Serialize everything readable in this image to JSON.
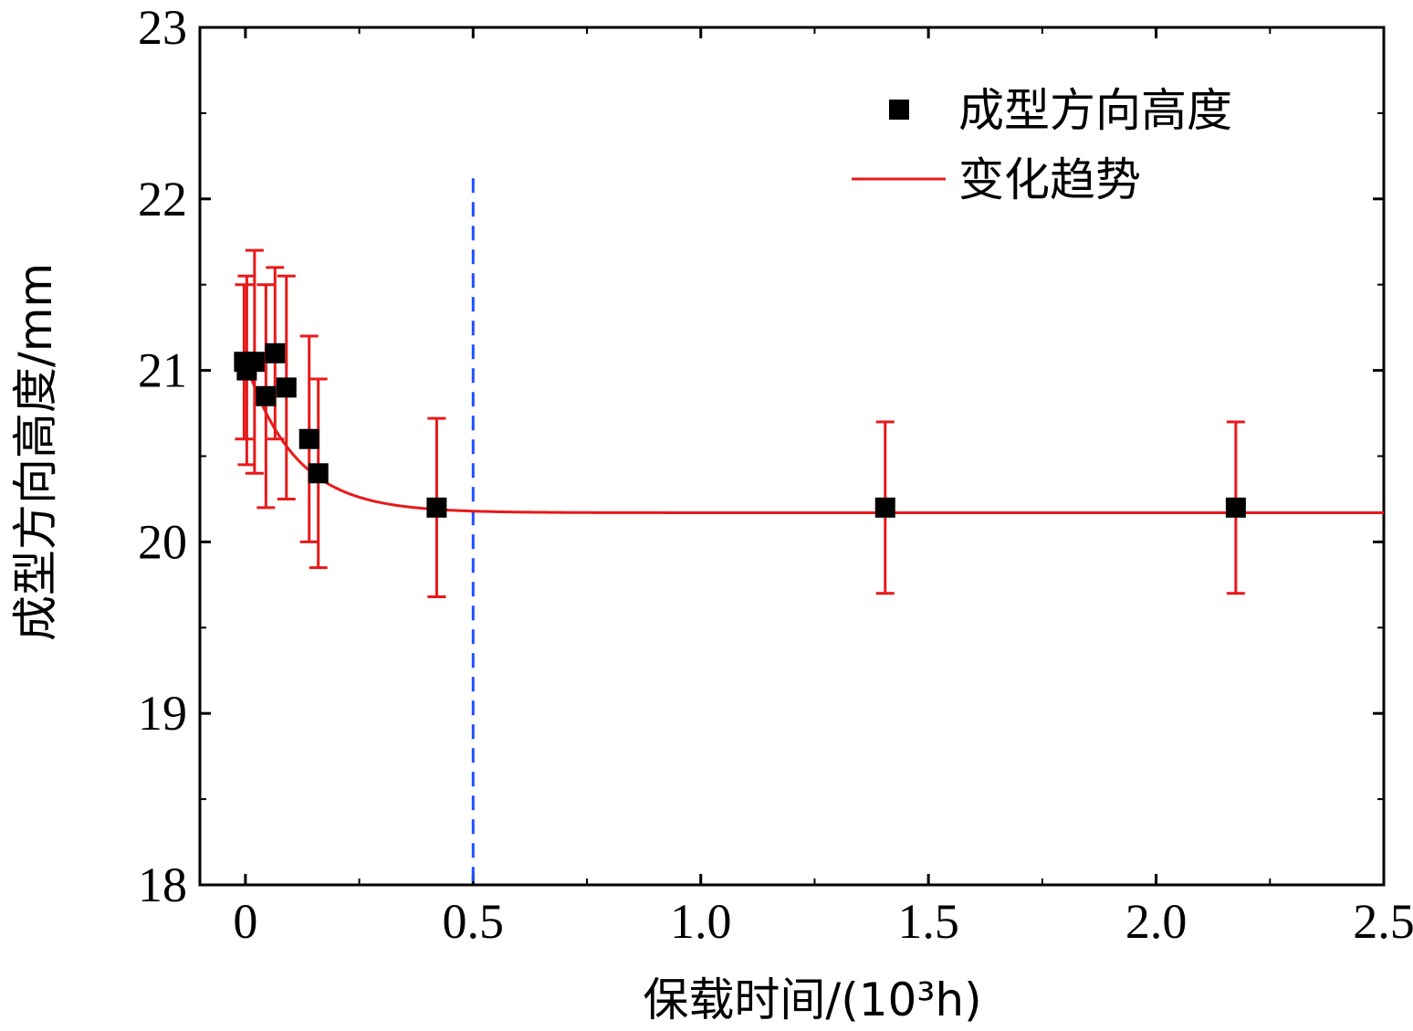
{
  "chart_data": {
    "type": "scatter",
    "xlabel": "保载时间/(10³h)",
    "ylabel": "成型方向高度/mm",
    "xlim": [
      -0.1,
      2.5
    ],
    "ylim": [
      18,
      23
    ],
    "x_ticks": [
      "0",
      "0.5",
      "1.0",
      "1.5",
      "2.0",
      "2.5"
    ],
    "x_tick_values": [
      0,
      0.5,
      1.0,
      1.5,
      2.0,
      2.5
    ],
    "y_ticks": [
      "18",
      "19",
      "20",
      "21",
      "22",
      "23"
    ],
    "y_tick_values": [
      18,
      19,
      20,
      21,
      22,
      23
    ],
    "reference_line": {
      "x": 0.5,
      "style": "dashed",
      "color": "#1f4fff"
    },
    "series": [
      {
        "name": "成型方向高度",
        "kind": "points",
        "marker": "square",
        "color": "#000000",
        "error_bar_color": "#e8191a",
        "x": [
          -0.003,
          0.003,
          0.02,
          0.045,
          0.065,
          0.09,
          0.14,
          0.16,
          0.42,
          1.405,
          2.175
        ],
        "y": [
          21.05,
          21.0,
          21.05,
          20.85,
          21.1,
          20.9,
          20.6,
          20.4,
          20.2,
          20.2,
          20.2
        ],
        "err": [
          0.45,
          0.55,
          0.65,
          0.65,
          0.5,
          0.65,
          0.6,
          0.55,
          0.52,
          0.5,
          0.5
        ]
      },
      {
        "name": "变化趋势",
        "kind": "line",
        "color": "#e8191a",
        "model": "exponential decay",
        "params": {
          "y0": 20.17,
          "A": 0.88,
          "t": 0.11,
          "x_start": 0.0,
          "x_end": 2.5
        }
      }
    ],
    "legend": {
      "position": "top-right",
      "entries": [
        "成型方向高度",
        "变化趋势"
      ]
    }
  }
}
